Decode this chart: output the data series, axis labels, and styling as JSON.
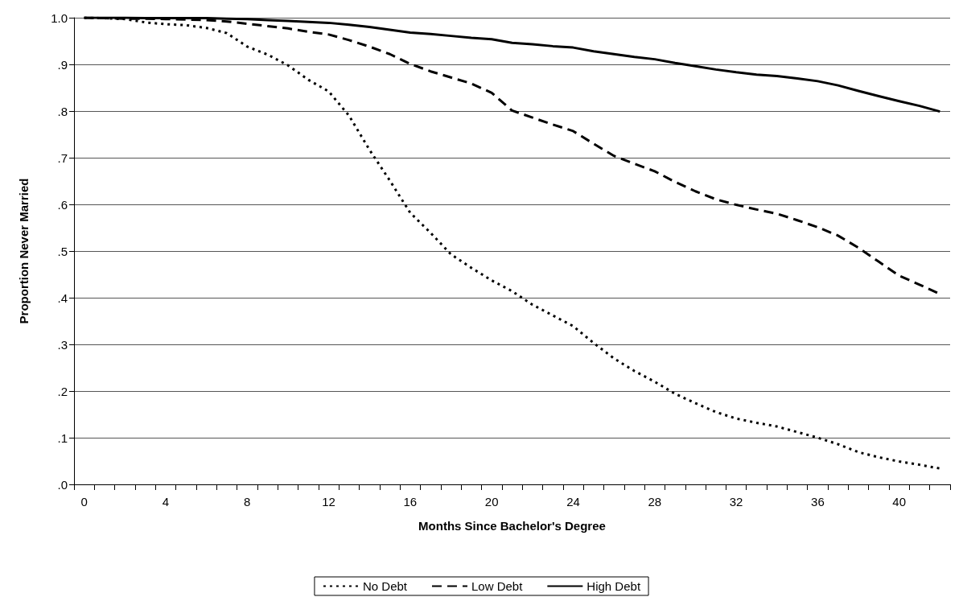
{
  "chart_data": {
    "type": "line",
    "xlabel": "Months Since Bachelor's Degree",
    "ylabel": "Proportion Never Married",
    "categories": [
      "0",
      null,
      null,
      null,
      "4",
      null,
      null,
      null,
      "8",
      null,
      null,
      null,
      "12",
      null,
      null,
      null,
      "16",
      null,
      null,
      null,
      "20",
      null,
      null,
      null,
      "24",
      null,
      null,
      null,
      "28",
      null,
      null,
      null,
      "32",
      null,
      null,
      null,
      "36",
      null,
      null,
      null,
      "40",
      null,
      null
    ],
    "series": [
      {
        "name": "No Debt",
        "color": "#000000",
        "line_style": "dotted",
        "values": [
          1.0,
          0.999,
          0.997,
          0.99,
          0.986,
          0.984,
          0.978,
          0.967,
          0.938,
          0.921,
          0.898,
          0.867,
          0.842,
          0.79,
          0.717,
          0.651,
          0.582,
          0.539,
          0.493,
          0.464,
          0.437,
          0.414,
          0.385,
          0.362,
          0.339,
          0.303,
          0.27,
          0.243,
          0.22,
          0.194,
          0.174,
          0.155,
          0.141,
          0.132,
          0.124,
          0.112,
          0.1,
          0.086,
          0.069,
          0.058,
          0.049,
          0.042,
          0.034
        ]
      },
      {
        "name": "Low Debt",
        "color": "#000000",
        "line_style": "dashed",
        "values": [
          1.0,
          0.999,
          0.998,
          0.998,
          0.997,
          0.996,
          0.995,
          0.992,
          0.987,
          0.982,
          0.977,
          0.97,
          0.964,
          0.952,
          0.938,
          0.922,
          0.901,
          0.885,
          0.872,
          0.859,
          0.839,
          0.801,
          0.786,
          0.771,
          0.757,
          0.73,
          0.704,
          0.687,
          0.671,
          0.648,
          0.628,
          0.611,
          0.599,
          0.589,
          0.58,
          0.566,
          0.551,
          0.533,
          0.507,
          0.477,
          0.447,
          0.428,
          0.408
        ]
      },
      {
        "name": "High Debt",
        "color": "#000000",
        "line_style": "solid",
        "values": [
          1.0,
          1.0,
          1.0,
          0.999,
          0.999,
          0.999,
          0.999,
          0.998,
          0.997,
          0.995,
          0.993,
          0.991,
          0.989,
          0.985,
          0.98,
          0.974,
          0.968,
          0.965,
          0.961,
          0.957,
          0.954,
          0.946,
          0.943,
          0.939,
          0.936,
          0.928,
          0.922,
          0.916,
          0.911,
          0.903,
          0.896,
          0.889,
          0.883,
          0.878,
          0.875,
          0.87,
          0.864,
          0.855,
          0.843,
          0.832,
          0.821,
          0.811,
          0.799
        ]
      }
    ],
    "ylim": [
      0,
      1
    ],
    "yticks": [
      {
        "value": 0,
        "label": ".0"
      },
      {
        "value": 0.1,
        "label": ".1"
      },
      {
        "value": 0.2,
        "label": ".2"
      },
      {
        "value": 0.3,
        "label": ".3"
      },
      {
        "value": 0.4,
        "label": ".4"
      },
      {
        "value": 0.5,
        "label": ".5"
      },
      {
        "value": 0.6,
        "label": ".6"
      },
      {
        "value": 0.7,
        "label": ".7"
      },
      {
        "value": 0.8,
        "label": ".8"
      },
      {
        "value": 0.9,
        "label": ".9"
      },
      {
        "value": 1,
        "label": "1.0"
      }
    ],
    "grid": "y",
    "legend": "bottom",
    "marker": "none"
  }
}
